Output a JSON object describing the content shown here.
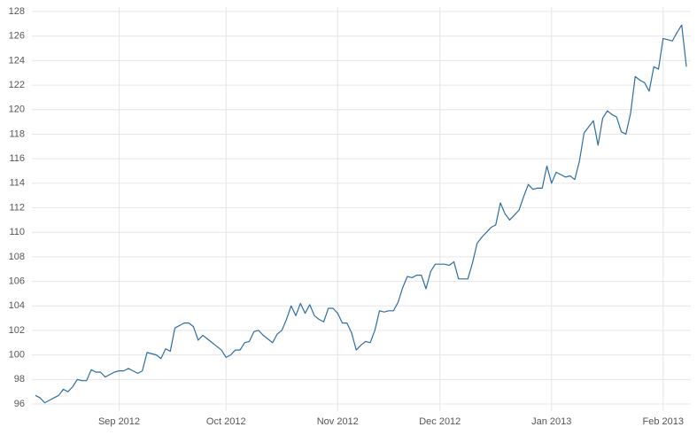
{
  "chart_data": {
    "type": "line",
    "categories": [
      null,
      null,
      null,
      null,
      null,
      null,
      null,
      null,
      null,
      null,
      null,
      null,
      null,
      null,
      null,
      null,
      null,
      null,
      "Sep 2012",
      null,
      null,
      null,
      null,
      null,
      null,
      null,
      null,
      null,
      null,
      null,
      null,
      null,
      null,
      null,
      null,
      null,
      null,
      null,
      null,
      null,
      null,
      "Oct 2012",
      null,
      null,
      null,
      null,
      null,
      null,
      null,
      null,
      null,
      null,
      null,
      null,
      null,
      null,
      null,
      null,
      null,
      null,
      null,
      null,
      null,
      null,
      null,
      "Nov 2012",
      null,
      null,
      null,
      null,
      null,
      null,
      null,
      null,
      null,
      null,
      null,
      null,
      null,
      null,
      null,
      null,
      null,
      null,
      null,
      null,
      null,
      "Dec 2012",
      null,
      null,
      null,
      null,
      null,
      null,
      null,
      null,
      null,
      null,
      null,
      null,
      null,
      null,
      null,
      null,
      null,
      null,
      null,
      null,
      null,
      null,
      null,
      "Jan 2013",
      null,
      null,
      null,
      null,
      null,
      null,
      null,
      null,
      null,
      null,
      null,
      null,
      null,
      null,
      null,
      null,
      null,
      null,
      null,
      null,
      null,
      null,
      null,
      "Feb 2013",
      null,
      null,
      null,
      null,
      null
    ],
    "values": [
      96.7,
      96.5,
      96.1,
      96.3,
      96.5,
      96.7,
      97.2,
      97.0,
      97.4,
      98.0,
      97.9,
      97.9,
      98.8,
      98.6,
      98.6,
      98.2,
      98.4,
      98.6,
      98.7,
      98.7,
      98.9,
      98.7,
      98.5,
      98.7,
      100.2,
      100.1,
      100.0,
      99.7,
      100.5,
      100.3,
      102.2,
      102.4,
      102.6,
      102.6,
      102.3,
      101.2,
      101.6,
      101.3,
      101.0,
      100.7,
      100.4,
      99.8,
      100.0,
      100.4,
      100.4,
      101.0,
      101.1,
      101.9,
      102.0,
      101.6,
      101.3,
      101.0,
      101.7,
      102.0,
      102.9,
      104.0,
      103.2,
      104.2,
      103.4,
      104.1,
      103.2,
      102.9,
      102.7,
      103.8,
      103.8,
      103.4,
      102.6,
      102.6,
      101.8,
      100.4,
      100.8,
      101.1,
      101.0,
      102.0,
      103.6,
      103.5,
      103.6,
      103.6,
      104.3,
      105.5,
      106.4,
      106.3,
      106.5,
      106.5,
      105.4,
      106.8,
      107.4,
      107.4,
      107.4,
      107.3,
      107.6,
      106.2,
      106.2,
      106.2,
      107.5,
      109.1,
      109.6,
      110.0,
      110.4,
      110.6,
      112.4,
      111.5,
      111.0,
      111.4,
      111.8,
      112.9,
      113.9,
      113.5,
      113.6,
      113.6,
      115.4,
      114.0,
      114.9,
      114.7,
      114.5,
      114.6,
      114.3,
      115.8,
      118.1,
      118.6,
      119.1,
      117.1,
      119.3,
      119.9,
      119.6,
      119.4,
      118.2,
      118.0,
      119.7,
      122.7,
      122.4,
      122.2,
      121.5,
      123.5,
      123.3,
      125.8,
      125.7,
      125.6,
      126.3,
      126.9,
      123.5
    ],
    "color": "#2e6da4",
    "ylim": [
      96,
      128
    ],
    "yticks": [
      96,
      98,
      100,
      102,
      104,
      106,
      108,
      110,
      112,
      114,
      116,
      118,
      120,
      122,
      124,
      126,
      128
    ],
    "grid": true
  }
}
